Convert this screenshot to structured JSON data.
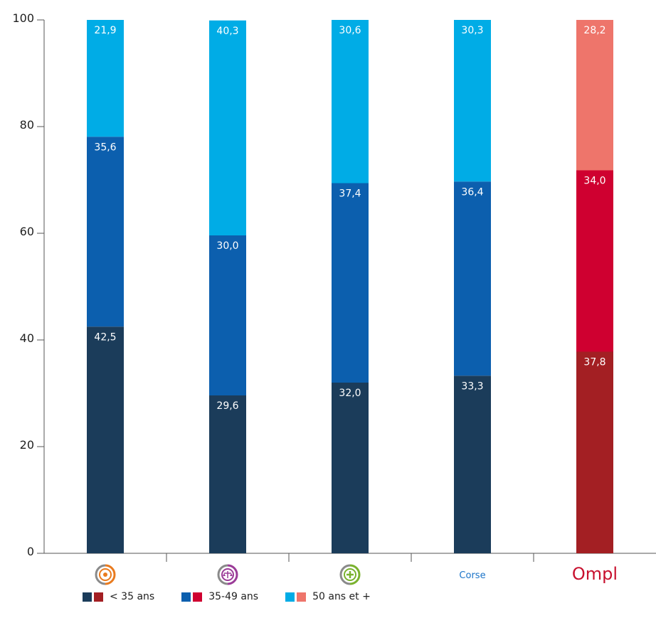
{
  "chart_data": {
    "type": "bar",
    "stacked": true,
    "ylim": [
      0,
      100
    ],
    "yticks": [
      0,
      20,
      40,
      60,
      80,
      100
    ],
    "categories": [
      {
        "label": "",
        "icon": "orange-circle-logo-icon",
        "color": "#e97b1f"
      },
      {
        "label": "",
        "icon": "scales-of-justice-icon",
        "color": "#9b3c98"
      },
      {
        "label": "",
        "icon": "plus-circle-icon",
        "color": "#7ab22e"
      },
      {
        "label": "Corse",
        "icon": "",
        "color": "#1a73c8"
      },
      {
        "label": "",
        "icon": "ompl-logo-icon",
        "color": "#c8102e"
      }
    ],
    "logo_text": {
      "ompl": "Ompl"
    },
    "series": [
      {
        "name": "< 35 ans",
        "values": [
          42.5,
          29.6,
          32.0,
          33.3,
          37.8
        ],
        "labels": [
          "42,5",
          "29,6",
          "32,0",
          "33,3",
          "37,8"
        ],
        "colors": [
          "#1b3c5a",
          "#1b3c5a",
          "#1b3c5a",
          "#1b3c5a",
          "#a31f23"
        ]
      },
      {
        "name": "35-49 ans",
        "values": [
          35.6,
          30.0,
          37.4,
          36.4,
          34.0
        ],
        "labels": [
          "35,6",
          "30,0",
          "37,4",
          "36,4",
          "34,0"
        ],
        "colors": [
          "#0c5fae",
          "#0c5fae",
          "#0c5fae",
          "#0c5fae",
          "#cf0030"
        ]
      },
      {
        "name": "50 ans et +",
        "values": [
          21.9,
          40.3,
          30.6,
          30.3,
          28.2
        ],
        "labels": [
          "21,9",
          "40,3",
          "30,6",
          "30,3",
          "28,2"
        ],
        "colors": [
          "#00ace6",
          "#00ace6",
          "#00ace6",
          "#00ace6",
          "#ee756b"
        ]
      }
    ],
    "legend": {
      "position": "bottom-left",
      "items": [
        {
          "label": "< 35 ans",
          "colors": [
            "#1b3c5a",
            "#a31f23"
          ]
        },
        {
          "label": "35-49 ans",
          "colors": [
            "#0c5fae",
            "#cf0030"
          ]
        },
        {
          "label": "50 ans et +",
          "colors": [
            "#00ace6",
            "#ee756b"
          ]
        }
      ]
    },
    "grid": false
  }
}
